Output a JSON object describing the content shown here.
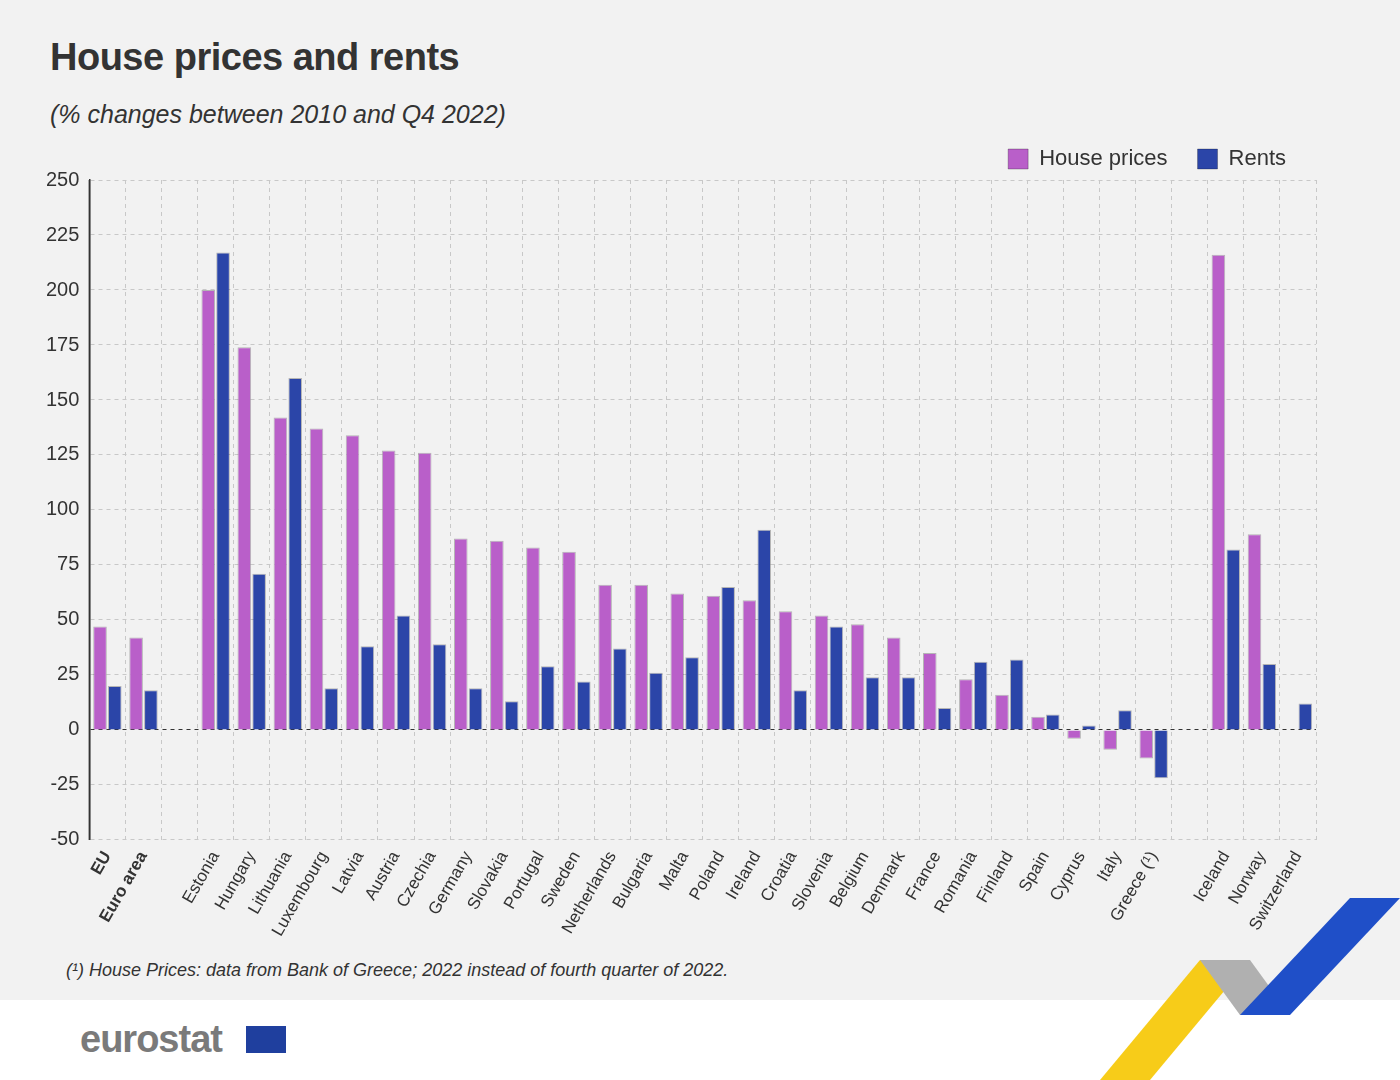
{
  "chart_data": {
    "type": "bar",
    "title": "House prices and rents",
    "subtitle": "(% changes between 2010 and Q4 2022)",
    "footnote": "(¹) House Prices: data from Bank of Greece; 2022 instead of fourth quarter of 2022.",
    "source": "eurostat",
    "categories": [
      "EU",
      "Euro area",
      null,
      "Estonia",
      "Hungary",
      "Lithuania",
      "Luxembourg",
      "Latvia",
      "Austria",
      "Czechia",
      "Germany",
      "Slovakia",
      "Portugal",
      "Sweden",
      "Netherlands",
      "Bulgaria",
      "Malta",
      "Poland",
      "Ireland",
      "Croatia",
      "Slovenia",
      "Belgium",
      "Denmark",
      "France",
      "Romania",
      "Finland",
      "Spain",
      "Cyprus",
      "Italy",
      "Greece (¹)",
      null,
      "Iceland",
      "Norway",
      "Switzerland"
    ],
    "series": [
      {
        "name": "House prices",
        "color": "#b95fc9",
        "values": [
          47,
          42,
          null,
          200,
          174,
          142,
          137,
          134,
          127,
          126,
          87,
          86,
          83,
          81,
          66,
          66,
          62,
          61,
          59,
          54,
          52,
          48,
          42,
          35,
          23,
          16,
          6,
          -4,
          -9,
          -13,
          null,
          216,
          89,
          null
        ]
      },
      {
        "name": "Rents",
        "color": "#2b45a8",
        "values": [
          20,
          18,
          null,
          217,
          71,
          160,
          19,
          38,
          52,
          39,
          19,
          13,
          29,
          22,
          37,
          26,
          33,
          65,
          91,
          18,
          47,
          24,
          24,
          10,
          31,
          32,
          7,
          2,
          9,
          -22,
          null,
          82,
          30,
          12
        ]
      }
    ],
    "ylim": [
      -50,
      250
    ],
    "yticks": [
      -50,
      -25,
      0,
      25,
      50,
      75,
      100,
      125,
      150,
      175,
      200,
      225,
      250
    ],
    "grid": true,
    "legend": "top-right"
  }
}
